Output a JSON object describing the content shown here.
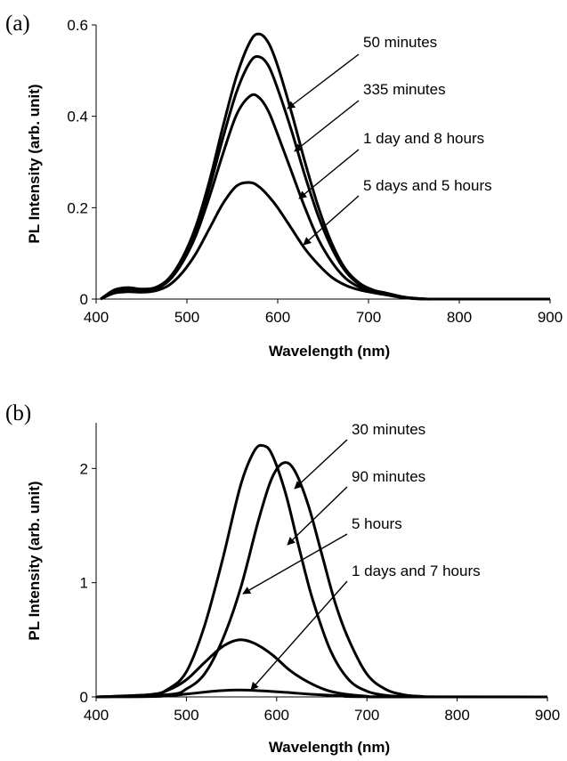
{
  "chart_data": [
    {
      "type": "line",
      "panel_label": "(a)",
      "xlabel": "Wavelength (nm)",
      "ylabel": "PL Intensity (arb. unit)",
      "xlim": [
        400,
        900
      ],
      "ylim": [
        0,
        0.6
      ],
      "x_ticks": [
        "400",
        "500",
        "600",
        "700",
        "800",
        "900"
      ],
      "y_ticks": [
        "0",
        "0.2",
        "0.4",
        "0.6"
      ],
      "x_tick_values": [
        400,
        500,
        600,
        700,
        800,
        900
      ],
      "y_tick_values": [
        0,
        0.2,
        0.4,
        0.6
      ],
      "grid": false,
      "legend": "annotations with arrows, right of curves",
      "series": [
        {
          "name": "50 minutes",
          "x": [
            405,
            420,
            435,
            450,
            465,
            480,
            495,
            510,
            525,
            540,
            555,
            570,
            580,
            590,
            600,
            615,
            630,
            645,
            660,
            675,
            690,
            705,
            720,
            735,
            750,
            765,
            780,
            900
          ],
          "y": [
            0.0,
            0.02,
            0.025,
            0.022,
            0.025,
            0.045,
            0.09,
            0.16,
            0.26,
            0.38,
            0.49,
            0.565,
            0.58,
            0.56,
            0.51,
            0.41,
            0.3,
            0.2,
            0.12,
            0.065,
            0.035,
            0.02,
            0.013,
            0.006,
            0.002,
            0.0,
            0.0,
            0.0
          ]
        },
        {
          "name": "335 minutes",
          "x": [
            405,
            420,
            435,
            450,
            465,
            480,
            495,
            510,
            525,
            540,
            555,
            570,
            580,
            590,
            600,
            615,
            630,
            645,
            660,
            675,
            690,
            705,
            720,
            735,
            750,
            765,
            780,
            900
          ],
          "y": [
            0.0,
            0.018,
            0.022,
            0.02,
            0.023,
            0.042,
            0.085,
            0.15,
            0.245,
            0.355,
            0.455,
            0.52,
            0.53,
            0.51,
            0.46,
            0.37,
            0.27,
            0.18,
            0.11,
            0.06,
            0.032,
            0.018,
            0.012,
            0.005,
            0.002,
            0.0,
            0.0,
            0.0
          ]
        },
        {
          "name": "1 day and 8 hours",
          "x": [
            405,
            420,
            435,
            450,
            465,
            480,
            495,
            510,
            525,
            540,
            555,
            570,
            580,
            590,
            600,
            615,
            630,
            645,
            660,
            675,
            690,
            705,
            720,
            735,
            750,
            765,
            780,
            900
          ],
          "y": [
            0.0,
            0.016,
            0.02,
            0.018,
            0.022,
            0.04,
            0.08,
            0.14,
            0.225,
            0.32,
            0.405,
            0.445,
            0.44,
            0.41,
            0.36,
            0.28,
            0.2,
            0.13,
            0.08,
            0.045,
            0.026,
            0.016,
            0.01,
            0.004,
            0.001,
            0.0,
            0.0,
            0.0
          ]
        },
        {
          "name": "5 days and 5 hours",
          "x": [
            405,
            420,
            435,
            450,
            465,
            480,
            495,
            510,
            525,
            540,
            555,
            570,
            580,
            590,
            600,
            615,
            630,
            645,
            660,
            675,
            690,
            705,
            720,
            735,
            750,
            765,
            780,
            900
          ],
          "y": [
            0.0,
            0.013,
            0.016,
            0.015,
            0.018,
            0.03,
            0.058,
            0.1,
            0.155,
            0.21,
            0.248,
            0.255,
            0.245,
            0.225,
            0.2,
            0.155,
            0.11,
            0.075,
            0.047,
            0.03,
            0.02,
            0.014,
            0.009,
            0.004,
            0.001,
            0.0,
            0.0,
            0.0
          ]
        }
      ]
    },
    {
      "type": "line",
      "panel_label": "(b)",
      "xlabel": "Wavelength (nm)",
      "ylabel": "PL Intensity (arb. unit)",
      "xlim": [
        400,
        900
      ],
      "ylim": [
        0,
        2.4
      ],
      "x_ticks": [
        "400",
        "500",
        "600",
        "700",
        "800",
        "900"
      ],
      "y_ticks": [
        "0",
        "1",
        "2"
      ],
      "x_tick_values": [
        400,
        500,
        600,
        700,
        800,
        900
      ],
      "y_tick_values": [
        0,
        1,
        2
      ],
      "grid": false,
      "legend": "annotations with arrows, right of curves",
      "series": [
        {
          "name": "30 minutes",
          "x": [
            400,
            460,
            480,
            500,
            520,
            540,
            560,
            575,
            585,
            595,
            610,
            625,
            640,
            660,
            680,
            700,
            720,
            740,
            760,
            900
          ],
          "y": [
            0.0,
            0.02,
            0.07,
            0.22,
            0.62,
            1.2,
            1.85,
            2.15,
            2.2,
            2.12,
            1.78,
            1.3,
            0.85,
            0.4,
            0.15,
            0.05,
            0.015,
            0.004,
            0.0,
            0.0
          ]
        },
        {
          "name": "90 minutes",
          "x": [
            400,
            480,
            500,
            520,
            540,
            560,
            580,
            595,
            608,
            620,
            635,
            650,
            665,
            680,
            700,
            720,
            740,
            760,
            780,
            900
          ],
          "y": [
            0.0,
            0.02,
            0.07,
            0.2,
            0.5,
            0.95,
            1.55,
            1.92,
            2.05,
            1.98,
            1.68,
            1.25,
            0.82,
            0.5,
            0.2,
            0.07,
            0.02,
            0.005,
            0.0,
            0.0
          ]
        },
        {
          "name": "5 hours",
          "x": [
            400,
            460,
            480,
            500,
            520,
            540,
            558,
            575,
            595,
            615,
            635,
            655,
            675,
            700,
            720,
            900
          ],
          "y": [
            0.0,
            0.02,
            0.06,
            0.15,
            0.3,
            0.44,
            0.5,
            0.47,
            0.37,
            0.23,
            0.13,
            0.06,
            0.025,
            0.006,
            0.0,
            0.0
          ]
        },
        {
          "name": "1 days and 7 hours",
          "x": [
            400,
            470,
            500,
            530,
            555,
            580,
            610,
            640,
            670,
            700,
            900
          ],
          "y": [
            0.0,
            0.005,
            0.025,
            0.05,
            0.06,
            0.055,
            0.04,
            0.022,
            0.01,
            0.002,
            0.0
          ]
        }
      ]
    }
  ]
}
